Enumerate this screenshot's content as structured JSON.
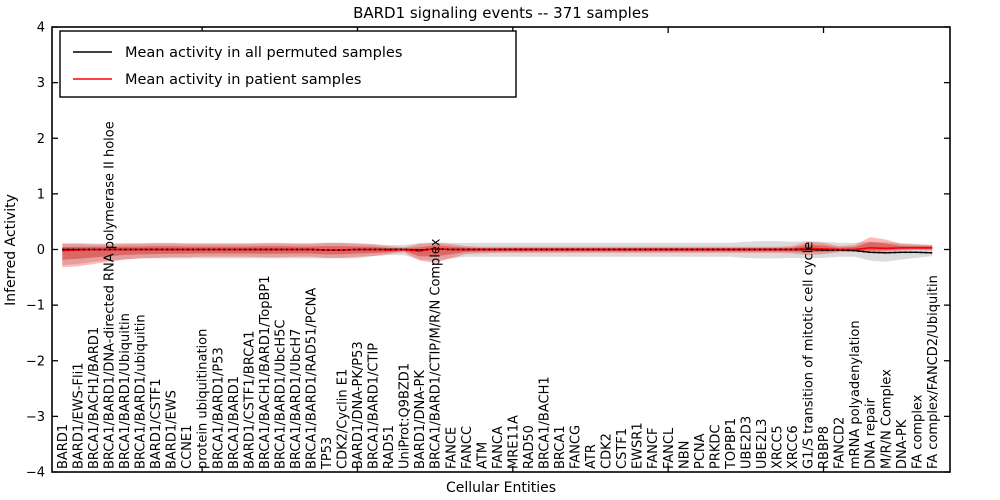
{
  "figure": {
    "title": "BARD1 signaling events -- 371 samples",
    "xlabel": "Cellular Entities",
    "ylabel": "Inferred Activity",
    "colors": {
      "background": "#ffffff",
      "spine": "#000000",
      "permuted_line": "#000000",
      "patient_line": "#ff0000",
      "permuted_band": "#bdbdbd",
      "patient_band": "#ff0000",
      "patient_band_core": "#cc0000"
    }
  },
  "legend": {
    "items": [
      {
        "label": "Mean activity in all permuted samples",
        "color": "#000000"
      },
      {
        "label": "Mean activity in patient samples",
        "color": "#ff0000"
      }
    ]
  },
  "chart_data": {
    "type": "line",
    "title": "BARD1 signaling events -- 371 samples",
    "xlabel": "Cellular Entities",
    "ylabel": "Inferred Activity",
    "ylim": [
      -4,
      4
    ],
    "yticks": [
      4,
      3,
      2,
      1,
      0,
      -1,
      -2,
      -3,
      -4
    ],
    "xtick_marks_at_category_numbers": [
      10,
      20,
      30,
      40,
      50
    ],
    "grid": false,
    "legend_position": "upper left",
    "categories": [
      "BARD1",
      "BARD1/EWS-Fli1",
      "BRCA1/BACH1/BARD1",
      "BRCA1/BARD1/DNA-directed RNA polymerase II holoe",
      "BRCA1/BARD1/Ubiquitin",
      "BRCA1/BARD1/ubiquitin",
      "BARD1/CSTF1",
      "BARD1/EWS",
      "CCNE1",
      "protein ubiquitination",
      "BRCA1/BARD1/P53",
      "BRCA1/BARD1",
      "BARD1/CSTF1/BRCA1",
      "BRCA1/BACH1/BARD1/TopBP1",
      "BRCA1/BARD1/UbcH5C",
      "BRCA1/BARD1/UbcH7",
      "BRCA1/BARD1/RAD51/PCNA",
      "TP53",
      "CDK2/Cyclin E1",
      "BARD1/DNA-PK/P53",
      "BRCA1/BARD1/CTIP",
      "RAD51",
      "UniProt:Q9BZD1",
      "BARD1/DNA-PK",
      "BRCA1/BARD1/CTIP/M/R/N Complex",
      "FANCE",
      "FANCC",
      "ATM",
      "FANCA",
      "MRE11A",
      "RAD50",
      "BRCA1/BACH1",
      "BRCA1",
      "FANCG",
      "ATR",
      "CDK2",
      "CSTF1",
      "EWSR1",
      "FANCF",
      "FANCL",
      "NBN",
      "PCNA",
      "PRKDC",
      "TOPBP1",
      "UBE2D3",
      "UBE2L3",
      "XRCC5",
      "XRCC6",
      "G1/S transition of mitotic cell cycle",
      "RBBP8",
      "FANCD2",
      "mRNA polyadenylation",
      "DNA repair",
      "M/R/N Complex",
      "DNA-PK",
      "FA complex",
      "FA complex/FANCD2/Ubiquitin"
    ],
    "series": [
      {
        "name": "Mean activity in all permuted samples",
        "color": "#000000",
        "line_style": "solid with dot markers",
        "values": [
          0,
          0,
          0,
          0,
          0,
          0,
          0,
          0,
          0,
          0,
          0,
          0,
          0,
          0,
          0,
          0,
          0,
          -0.01,
          -0.01,
          0,
          0,
          0,
          0,
          -0.01,
          0.01,
          0,
          0,
          0,
          0,
          0,
          0,
          0,
          0,
          0,
          0,
          0,
          0,
          0,
          0,
          0,
          0,
          0,
          0,
          0,
          0,
          0,
          0,
          0,
          0,
          -0.01,
          -0.01,
          -0.02,
          -0.05,
          -0.06,
          -0.05,
          -0.05,
          -0.06
        ],
        "band_upper": [
          0.12,
          0.12,
          0.11,
          0.11,
          0.12,
          0.12,
          0.12,
          0.12,
          0.12,
          0.12,
          0.12,
          0.12,
          0.12,
          0.12,
          0.12,
          0.12,
          0.12,
          0.12,
          0.12,
          0.12,
          0.1,
          0.08,
          0.08,
          0.12,
          0.13,
          0.12,
          0.12,
          0.12,
          0.12,
          0.12,
          0.12,
          0.12,
          0.12,
          0.12,
          0.12,
          0.12,
          0.12,
          0.12,
          0.12,
          0.12,
          0.12,
          0.12,
          0.12,
          0.12,
          0.14,
          0.15,
          0.15,
          0.14,
          0.15,
          0.14,
          0.12,
          0.12,
          0.14,
          0.13,
          0.12,
          0.1,
          0.08
        ],
        "band_lower": [
          -0.28,
          -0.26,
          -0.22,
          -0.2,
          -0.18,
          -0.16,
          -0.16,
          -0.16,
          -0.16,
          -0.16,
          -0.16,
          -0.16,
          -0.16,
          -0.16,
          -0.16,
          -0.16,
          -0.16,
          -0.16,
          -0.16,
          -0.16,
          -0.12,
          -0.1,
          -0.1,
          -0.18,
          -0.2,
          -0.16,
          -0.13,
          -0.13,
          -0.13,
          -0.13,
          -0.13,
          -0.13,
          -0.13,
          -0.13,
          -0.13,
          -0.13,
          -0.13,
          -0.13,
          -0.13,
          -0.13,
          -0.13,
          -0.13,
          -0.13,
          -0.13,
          -0.15,
          -0.16,
          -0.16,
          -0.15,
          -0.16,
          -0.15,
          -0.13,
          -0.13,
          -0.2,
          -0.22,
          -0.18,
          -0.15,
          -0.12
        ],
        "band_color": "#bdbdbd",
        "band_opacity": 0.55
      },
      {
        "name": "Mean activity in patient samples",
        "color": "#ff0000",
        "line_style": "solid",
        "values": [
          -0.02,
          -0.01,
          0,
          0,
          0,
          0,
          0,
          0,
          0,
          0,
          0,
          0,
          0,
          0,
          0,
          0,
          0,
          -0.01,
          -0.01,
          0,
          0,
          -0.01,
          0,
          -0.03,
          0.02,
          0,
          0,
          0,
          0,
          0,
          0,
          0,
          0,
          0,
          0,
          0,
          0,
          0,
          0,
          0,
          0,
          0,
          0,
          0,
          0,
          0,
          0,
          0,
          0.02,
          0.01,
          0,
          0,
          0.03,
          0.02,
          0.03,
          0.03,
          0.03
        ],
        "band_upper": [
          0.1,
          0.1,
          0.09,
          0.09,
          0.1,
          0.1,
          0.11,
          0.11,
          0.1,
          0.1,
          0.1,
          0.1,
          0.1,
          0.11,
          0.11,
          0.1,
          0.1,
          0.12,
          0.12,
          0.1,
          0.09,
          0.06,
          0.04,
          0.1,
          0.12,
          0.1,
          0.06,
          0.05,
          0.05,
          0.05,
          0.05,
          0.05,
          0.05,
          0.05,
          0.05,
          0.05,
          0.05,
          0.05,
          0.05,
          0.05,
          0.05,
          0.05,
          0.05,
          0.05,
          0.05,
          0.05,
          0.05,
          0.06,
          0.14,
          0.12,
          0.06,
          0.08,
          0.22,
          0.18,
          0.1,
          0.09,
          0.08
        ],
        "band_lower": [
          -0.32,
          -0.3,
          -0.26,
          -0.22,
          -0.18,
          -0.16,
          -0.15,
          -0.14,
          -0.14,
          -0.13,
          -0.13,
          -0.13,
          -0.13,
          -0.14,
          -0.14,
          -0.13,
          -0.13,
          -0.15,
          -0.15,
          -0.13,
          -0.12,
          -0.08,
          -0.05,
          -0.2,
          -0.24,
          -0.16,
          -0.08,
          -0.07,
          -0.06,
          -0.06,
          -0.06,
          -0.06,
          -0.06,
          -0.06,
          -0.06,
          -0.06,
          -0.06,
          -0.06,
          -0.06,
          -0.06,
          -0.06,
          -0.06,
          -0.06,
          -0.06,
          -0.06,
          -0.06,
          -0.06,
          -0.07,
          -0.1,
          -0.08,
          -0.05,
          -0.04,
          -0.06,
          -0.04,
          -0.02,
          -0.01,
          -0.02
        ],
        "band_color": "#ff0000",
        "band_opacity": 0.28
      }
    ]
  }
}
